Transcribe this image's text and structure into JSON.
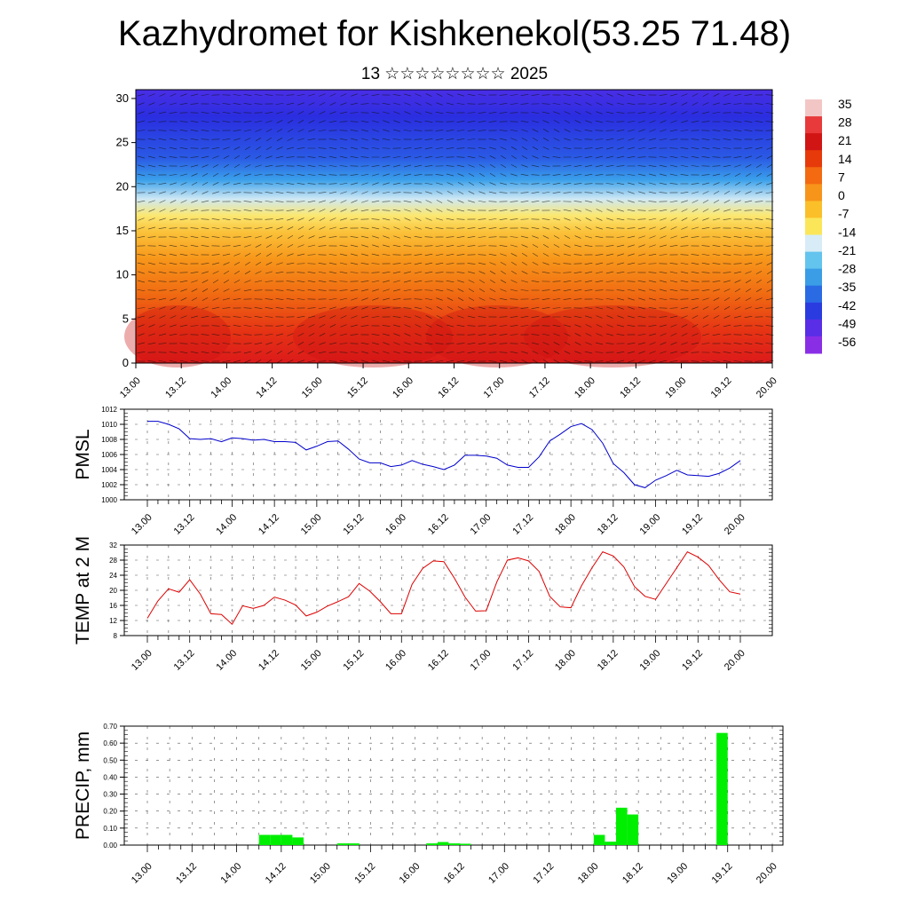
{
  "title": "Kazhydromet for Kishkenekol(53.25 71.48)",
  "subtitle": "13 ☆☆☆☆☆☆☆☆ 2025",
  "colorbar": {
    "labels": [
      "35",
      "28",
      "21",
      "14",
      "7",
      "0",
      "-7",
      "-14",
      "-21",
      "-28",
      "-35",
      "-42",
      "-49",
      "-56"
    ],
    "colors_top_to_bottom": [
      "#f3c6c6",
      "#e83a3a",
      "#d11414",
      "#e63a0a",
      "#f36a10",
      "#f7941a",
      "#fbbf2a",
      "#fbe65a",
      "#d7ecf6",
      "#63c4ee",
      "#3a9de6",
      "#2a6be4",
      "#2a3ce0",
      "#5a2ee6",
      "#8a2ee6"
    ]
  },
  "chart_data": [
    {
      "type": "heatmap",
      "description_label": "",
      "y_ticks": [
        "0",
        "5",
        "10",
        "15",
        "20",
        "25",
        "30"
      ],
      "ylim": [
        0,
        31
      ],
      "x_ticks": [
        "13.00",
        "13.12",
        "14.00",
        "14.12",
        "15.00",
        "15.12",
        "16.00",
        "16.12",
        "17.00",
        "17.12",
        "18.00",
        "18.12",
        "19.00",
        "19.12",
        "20.00"
      ],
      "levels_color_bands_by_height": [
        {
          "y": 0,
          "value": 28
        },
        {
          "y": 5,
          "value": 18
        },
        {
          "y": 10,
          "value": 8
        },
        {
          "y": 14,
          "value": -7
        },
        {
          "y": 17,
          "value": -21
        },
        {
          "y": 20,
          "value": -35
        },
        {
          "y": 24,
          "value": -49
        },
        {
          "y": 30,
          "value": -49
        }
      ],
      "vectors": "wind barbs overlaid on temperature field"
    },
    {
      "type": "line",
      "ylabel": "PMSL",
      "ylim": [
        1000,
        1012
      ],
      "y_ticks": [
        "1000",
        "1002",
        "1004",
        "1006",
        "1008",
        "1010",
        "1012"
      ],
      "x_ticks": [
        "13.00",
        "13.12",
        "14.00",
        "14.12",
        "15.00",
        "15.12",
        "16.00",
        "16.12",
        "17.00",
        "17.12",
        "18.00",
        "18.12",
        "19.00",
        "19.12",
        "20.00"
      ],
      "color": "#0000cc",
      "x_hours": [
        0,
        3,
        6,
        9,
        12,
        15,
        18,
        21,
        24,
        27,
        30,
        33,
        36,
        39,
        42,
        45,
        48,
        51,
        54,
        57,
        60,
        63,
        66,
        69,
        72,
        75,
        78,
        81,
        84,
        87,
        90,
        93,
        96,
        99,
        102,
        105,
        108,
        111,
        114,
        117,
        120,
        123,
        126,
        129,
        132,
        135,
        138,
        141,
        144,
        147,
        150,
        153,
        156,
        159,
        162,
        165,
        168
      ],
      "values": [
        1010.4,
        1010.4,
        1010.0,
        1009.4,
        1008.1,
        1008.0,
        1008.1,
        1007.7,
        1008.2,
        1008.1,
        1007.9,
        1008.0,
        1007.7,
        1007.7,
        1007.6,
        1006.6,
        1007.1,
        1007.7,
        1007.8,
        1006.7,
        1005.4,
        1004.9,
        1004.9,
        1004.4,
        1004.6,
        1005.2,
        1004.7,
        1004.4,
        1004.0,
        1004.6,
        1005.9,
        1005.9,
        1005.8,
        1005.5,
        1004.6,
        1004.3,
        1004.3,
        1005.7,
        1007.8,
        1008.7,
        1009.7,
        1010.1,
        1009.3,
        1007.5,
        1004.8,
        1003.6,
        1002.0,
        1001.6,
        1002.6,
        1003.2,
        1003.9,
        1003.3,
        1003.2,
        1003.1,
        1003.5,
        1004.2,
        1005.2
      ]
    },
    {
      "type": "line",
      "ylabel": "TEMP at 2 M",
      "ylim": [
        8,
        32
      ],
      "y_ticks": [
        "8",
        "12",
        "16",
        "20",
        "24",
        "28",
        "32"
      ],
      "x_ticks": [
        "13.00",
        "13.12",
        "14.00",
        "14.12",
        "15.00",
        "15.12",
        "16.00",
        "16.12",
        "17.00",
        "17.12",
        "18.00",
        "18.12",
        "19.00",
        "19.12",
        "20.00"
      ],
      "color": "#dd0000",
      "x_hours": [
        0,
        3,
        6,
        9,
        12,
        15,
        18,
        21,
        24,
        27,
        30,
        33,
        36,
        39,
        42,
        45,
        48,
        51,
        54,
        57,
        60,
        63,
        66,
        69,
        72,
        75,
        78,
        81,
        84,
        87,
        90,
        93,
        96,
        99,
        102,
        105,
        108,
        111,
        114,
        117,
        120,
        123,
        126,
        129,
        132,
        135,
        138,
        141,
        144,
        147,
        150,
        153,
        156,
        159,
        162,
        165,
        168
      ],
      "values": [
        12.6,
        17.2,
        20.4,
        19.5,
        22.8,
        19.0,
        13.8,
        13.6,
        11.0,
        15.9,
        15.2,
        16.0,
        18.2,
        17.4,
        16.1,
        13.2,
        14.2,
        15.8,
        17.0,
        18.3,
        21.8,
        19.8,
        17.0,
        13.8,
        13.8,
        21.6,
        25.8,
        27.8,
        27.6,
        23.2,
        18.2,
        14.5,
        14.6,
        22.2,
        28.0,
        28.6,
        27.8,
        25.0,
        18.4,
        15.6,
        15.4,
        21.2,
        26.0,
        30.2,
        29.1,
        26.2,
        21.0,
        18.4,
        17.6,
        21.8,
        26.0,
        30.2,
        28.8,
        26.6,
        22.8,
        19.6,
        19.0
      ]
    },
    {
      "type": "bar",
      "ylabel": "PRECIP, mm",
      "ylim": [
        0,
        0.7
      ],
      "y_ticks": [
        "0.00",
        "0.10",
        "0.20",
        "0.30",
        "0.40",
        "0.50",
        "0.60",
        "0.70"
      ],
      "x_ticks": [
        "13.00",
        "13.12",
        "14.00",
        "14.12",
        "15.00",
        "15.12",
        "16.00",
        "16.12",
        "17.00",
        "17.12",
        "18.00",
        "18.12",
        "19.00",
        "19.12",
        "20.00"
      ],
      "color": "#00ee00",
      "bars": [
        {
          "start_hour": 30,
          "value": 0.06
        },
        {
          "start_hour": 33,
          "value": 0.06
        },
        {
          "start_hour": 36,
          "value": 0.06
        },
        {
          "start_hour": 39,
          "value": 0.045
        },
        {
          "start_hour": 51,
          "value": 0.01
        },
        {
          "start_hour": 54,
          "value": 0.01
        },
        {
          "start_hour": 75,
          "value": 0.01
        },
        {
          "start_hour": 78,
          "value": 0.018
        },
        {
          "start_hour": 81,
          "value": 0.01
        },
        {
          "start_hour": 84,
          "value": 0.008
        },
        {
          "start_hour": 120,
          "value": 0.06
        },
        {
          "start_hour": 123,
          "value": 0.02
        },
        {
          "start_hour": 126,
          "value": 0.22
        },
        {
          "start_hour": 129,
          "value": 0.18
        },
        {
          "start_hour": 153,
          "value": 0.66
        }
      ]
    }
  ]
}
